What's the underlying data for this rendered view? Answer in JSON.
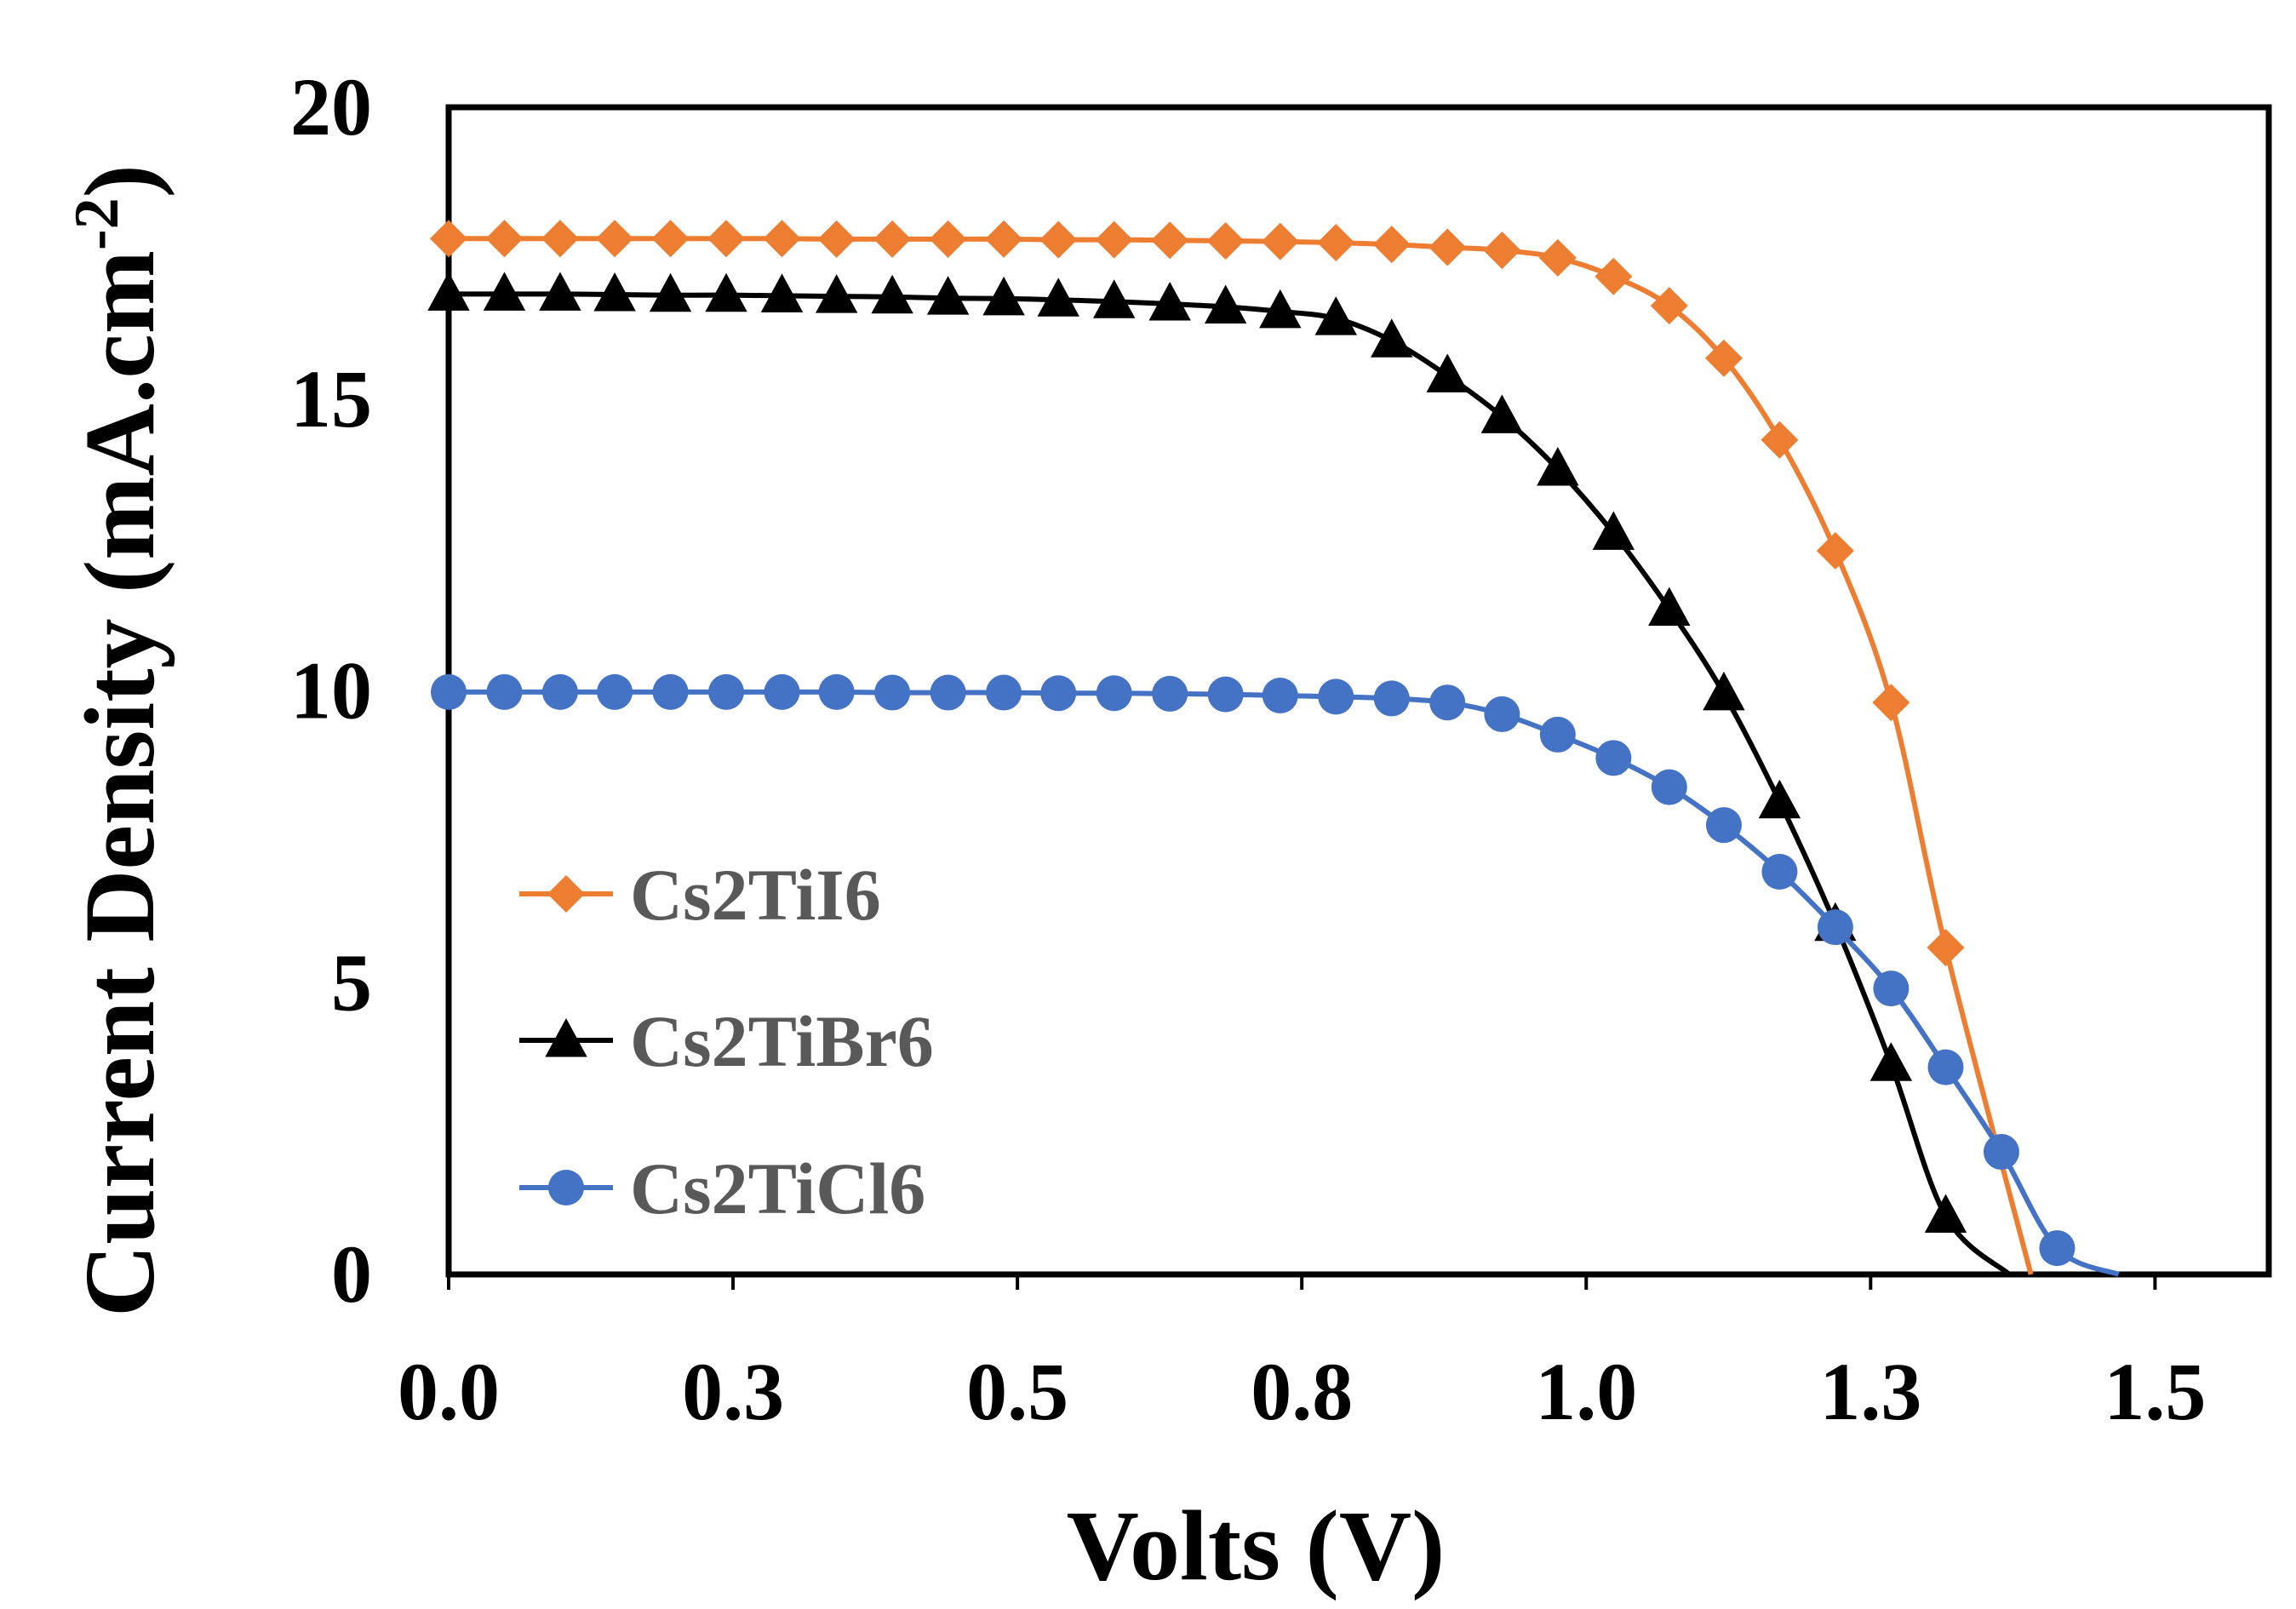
{
  "chart_data": {
    "type": "line",
    "title": "",
    "xlabel": "Volts (V)",
    "ylabel": "Current Density (mA.cm",
    "ylabel_sup": "-2",
    "ylabel_close": ")",
    "xlim": [
      0,
      1.6
    ],
    "ylim": [
      0,
      20
    ],
    "x_ticks": [
      0.0,
      0.25,
      0.5,
      0.75,
      1.0,
      1.25,
      1.5
    ],
    "x_tick_labels": [
      "0.0",
      "0.3",
      "0.5",
      "0.8",
      "1.0",
      "1.3",
      "1.5"
    ],
    "y_ticks": [
      0,
      5,
      10,
      15,
      20
    ],
    "y_tick_labels": [
      "0",
      "5",
      "10",
      "15",
      "20"
    ],
    "grid": false,
    "legend_position": "left-center",
    "series": [
      {
        "name": "Cs2TiI6",
        "color": "#ED7D31",
        "marker": "diamond",
        "points": [
          [
            0.0,
            17.75
          ],
          [
            0.049,
            17.75
          ],
          [
            0.098,
            17.75
          ],
          [
            0.146,
            17.75
          ],
          [
            0.195,
            17.75
          ],
          [
            0.244,
            17.75
          ],
          [
            0.293,
            17.75
          ],
          [
            0.341,
            17.74
          ],
          [
            0.39,
            17.74
          ],
          [
            0.439,
            17.74
          ],
          [
            0.488,
            17.74
          ],
          [
            0.536,
            17.73
          ],
          [
            0.585,
            17.73
          ],
          [
            0.634,
            17.72
          ],
          [
            0.683,
            17.71
          ],
          [
            0.731,
            17.7
          ],
          [
            0.78,
            17.68
          ],
          [
            0.829,
            17.65
          ],
          [
            0.878,
            17.6
          ],
          [
            0.926,
            17.55
          ],
          [
            0.975,
            17.42
          ],
          [
            1.024,
            17.1
          ],
          [
            1.073,
            16.6
          ],
          [
            1.121,
            15.7
          ],
          [
            1.17,
            14.3
          ],
          [
            1.219,
            12.4
          ],
          [
            1.268,
            9.8
          ],
          [
            1.316,
            5.6
          ],
          [
            1.391,
            0.0
          ]
        ]
      },
      {
        "name": "Cs2TiBr6",
        "color": "#000000",
        "marker": "triangle",
        "points": [
          [
            0.0,
            16.8
          ],
          [
            0.049,
            16.8
          ],
          [
            0.098,
            16.8
          ],
          [
            0.146,
            16.79
          ],
          [
            0.195,
            16.78
          ],
          [
            0.244,
            16.78
          ],
          [
            0.293,
            16.77
          ],
          [
            0.341,
            16.76
          ],
          [
            0.39,
            16.75
          ],
          [
            0.439,
            16.73
          ],
          [
            0.488,
            16.72
          ],
          [
            0.536,
            16.7
          ],
          [
            0.585,
            16.67
          ],
          [
            0.634,
            16.63
          ],
          [
            0.683,
            16.58
          ],
          [
            0.731,
            16.5
          ],
          [
            0.78,
            16.38
          ],
          [
            0.829,
            16.0
          ],
          [
            0.878,
            15.4
          ],
          [
            0.926,
            14.7
          ],
          [
            0.975,
            13.8
          ],
          [
            1.024,
            12.7
          ],
          [
            1.073,
            11.4
          ],
          [
            1.121,
            9.95
          ],
          [
            1.17,
            8.1
          ],
          [
            1.219,
            6.0
          ],
          [
            1.268,
            3.6
          ],
          [
            1.316,
            1.0
          ],
          [
            1.372,
            0.0
          ]
        ]
      },
      {
        "name": "Cs2TiCl6",
        "color": "#4472C4",
        "marker": "circle",
        "points": [
          [
            0.0,
            9.98
          ],
          [
            0.049,
            9.98
          ],
          [
            0.098,
            9.98
          ],
          [
            0.146,
            9.98
          ],
          [
            0.195,
            9.98
          ],
          [
            0.244,
            9.98
          ],
          [
            0.293,
            9.98
          ],
          [
            0.341,
            9.98
          ],
          [
            0.39,
            9.97
          ],
          [
            0.439,
            9.97
          ],
          [
            0.488,
            9.97
          ],
          [
            0.536,
            9.96
          ],
          [
            0.585,
            9.96
          ],
          [
            0.634,
            9.95
          ],
          [
            0.683,
            9.94
          ],
          [
            0.731,
            9.92
          ],
          [
            0.78,
            9.9
          ],
          [
            0.829,
            9.87
          ],
          [
            0.878,
            9.8
          ],
          [
            0.926,
            9.6
          ],
          [
            0.975,
            9.25
          ],
          [
            1.024,
            8.85
          ],
          [
            1.073,
            8.35
          ],
          [
            1.121,
            7.7
          ],
          [
            1.17,
            6.9
          ],
          [
            1.219,
            5.95
          ],
          [
            1.268,
            4.9
          ],
          [
            1.316,
            3.55
          ],
          [
            1.365,
            2.1
          ],
          [
            1.414,
            0.45
          ],
          [
            1.468,
            0.0
          ]
        ]
      }
    ]
  }
}
